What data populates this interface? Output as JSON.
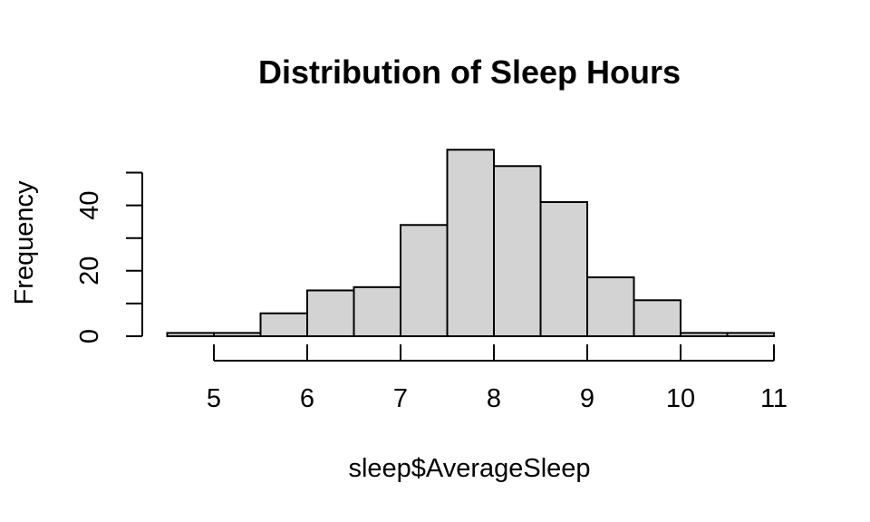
{
  "chart_data": {
    "type": "bar",
    "title": "Distribution of Sleep Hours",
    "xlabel": "sleep$AverageSleep",
    "ylabel": "Frequency",
    "bin_edges": [
      4.5,
      5.0,
      5.5,
      6.0,
      6.5,
      7.0,
      7.5,
      8.0,
      8.5,
      9.0,
      9.5,
      10.0,
      10.5,
      11.0
    ],
    "values": [
      1,
      1,
      7,
      14,
      15,
      34,
      57,
      52,
      41,
      18,
      11,
      1,
      1
    ],
    "xlim": [
      4.5,
      11
    ],
    "ylim": [
      0,
      57
    ],
    "x_ticks": [
      5,
      6,
      7,
      8,
      9,
      10,
      11
    ],
    "y_ticks": [
      0,
      10,
      20,
      30,
      40,
      50
    ],
    "y_tick_labels": [
      0,
      20,
      40
    ],
    "bar_color": "#d3d3d3",
    "grid": false
  }
}
